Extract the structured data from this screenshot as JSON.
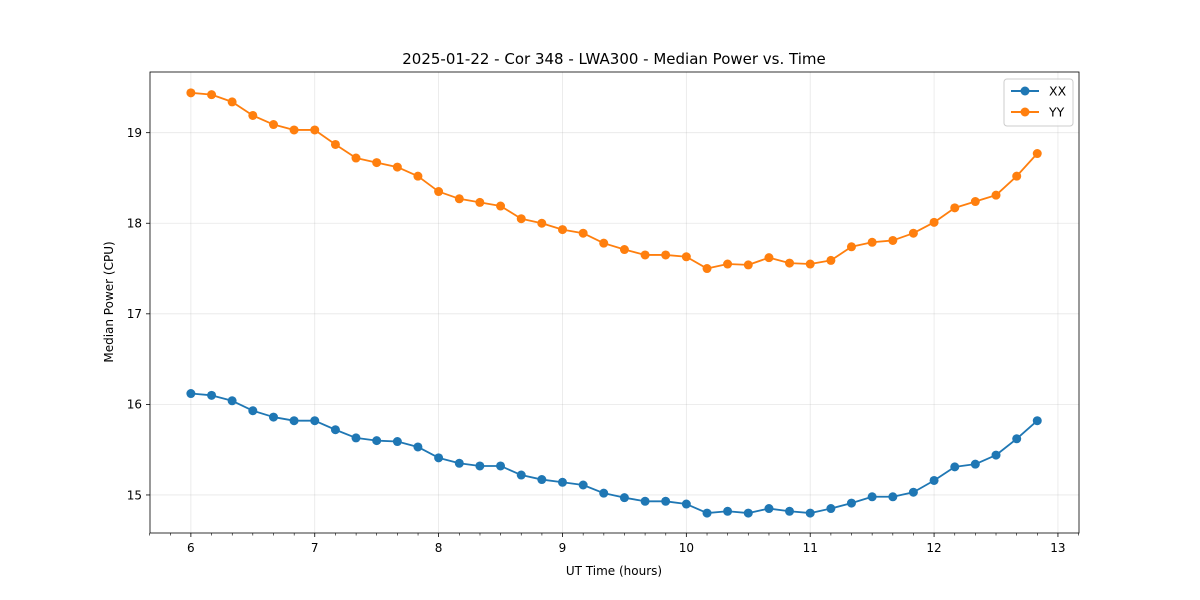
{
  "chart_data": {
    "type": "line",
    "title": "2025-01-22 - Cor 348 - LWA300 - Median Power vs. Time",
    "xlabel": "UT Time (hours)",
    "ylabel": "Median Power (CPU)",
    "xlim": [
      5.67,
      13.17
    ],
    "ylim": [
      14.58,
      19.67
    ],
    "xticks": [
      6,
      7,
      8,
      9,
      10,
      11,
      12,
      13
    ],
    "yticks": [
      15,
      16,
      17,
      18,
      19
    ],
    "grid": true,
    "legend_position": "top-right",
    "x": [
      6.0,
      6.167,
      6.333,
      6.5,
      6.667,
      6.833,
      7.0,
      7.167,
      7.333,
      7.5,
      7.667,
      7.833,
      8.0,
      8.167,
      8.333,
      8.5,
      8.667,
      8.833,
      9.0,
      9.167,
      9.333,
      9.5,
      9.667,
      9.833,
      10.0,
      10.167,
      10.333,
      10.5,
      10.667,
      10.833,
      11.0,
      11.167,
      11.333,
      11.5,
      11.667,
      11.833,
      12.0,
      12.167,
      12.333,
      12.5,
      12.667,
      12.833
    ],
    "series": [
      {
        "name": "XX",
        "color": "#1f77b4",
        "values": [
          16.12,
          16.1,
          16.04,
          15.93,
          15.86,
          15.82,
          15.82,
          15.72,
          15.63,
          15.6,
          15.59,
          15.53,
          15.41,
          15.35,
          15.32,
          15.32,
          15.22,
          15.17,
          15.14,
          15.11,
          15.02,
          14.97,
          14.93,
          14.93,
          14.9,
          14.8,
          14.82,
          14.8,
          14.85,
          14.82,
          14.8,
          14.85,
          14.91,
          14.98,
          14.98,
          15.03,
          15.16,
          15.31,
          15.34,
          15.44,
          15.62,
          15.82
        ]
      },
      {
        "name": "YY",
        "color": "#ff7f0e",
        "values": [
          19.44,
          19.42,
          19.34,
          19.19,
          19.09,
          19.03,
          19.03,
          18.87,
          18.72,
          18.67,
          18.62,
          18.52,
          18.35,
          18.27,
          18.23,
          18.19,
          18.05,
          18.0,
          17.93,
          17.89,
          17.78,
          17.71,
          17.65,
          17.65,
          17.63,
          17.5,
          17.55,
          17.54,
          17.62,
          17.56,
          17.55,
          17.59,
          17.74,
          17.79,
          17.81,
          17.89,
          18.01,
          18.17,
          18.24,
          18.31,
          18.52,
          18.77
        ]
      }
    ]
  }
}
